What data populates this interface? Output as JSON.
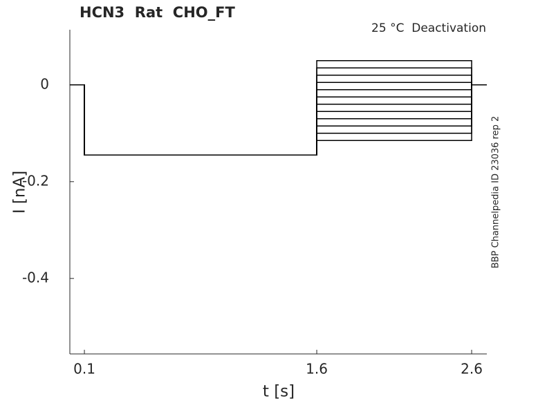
{
  "chart_data": {
    "type": "line",
    "title": "HCN3  Rat  CHO_FT",
    "annotation": "25 °C  Deactivation",
    "side_text": "BBP Channelpedia ID 23036 rep 2",
    "xlabel": "t [s]",
    "ylabel": "I [nA]",
    "x": [
      0.006,
      0.1,
      0.1,
      1.6,
      1.6,
      2.6,
      2.6,
      2.698
    ],
    "series": [
      {
        "color": "#000000",
        "values": [
          0,
          0,
          -0.145,
          -0.145,
          0.05,
          0.05,
          0,
          0
        ]
      },
      {
        "color": "#000000",
        "values": [
          0,
          0,
          -0.145,
          -0.145,
          0.035,
          0.035,
          0,
          0
        ]
      },
      {
        "color": "#000000",
        "values": [
          0,
          0,
          -0.145,
          -0.145,
          0.02,
          0.02,
          0,
          0
        ]
      },
      {
        "color": "#000000",
        "values": [
          0,
          0,
          -0.145,
          -0.145,
          0.005,
          0.005,
          0,
          0
        ]
      },
      {
        "color": "#000000",
        "values": [
          0,
          0,
          -0.145,
          -0.145,
          -0.01,
          -0.01,
          0,
          0
        ]
      },
      {
        "color": "#000000",
        "values": [
          0,
          0,
          -0.145,
          -0.145,
          -0.025,
          -0.025,
          0,
          0
        ]
      },
      {
        "color": "#000000",
        "values": [
          0,
          0,
          -0.145,
          -0.145,
          -0.04,
          -0.04,
          0,
          0
        ]
      },
      {
        "color": "#000000",
        "values": [
          0,
          0,
          -0.145,
          -0.145,
          -0.055,
          -0.055,
          0,
          0
        ]
      },
      {
        "color": "#000000",
        "values": [
          0,
          0,
          -0.145,
          -0.145,
          -0.07,
          -0.07,
          0,
          0
        ]
      },
      {
        "color": "#000000",
        "values": [
          0,
          0,
          -0.145,
          -0.145,
          -0.085,
          -0.085,
          0,
          0
        ]
      },
      {
        "color": "#000000",
        "values": [
          0,
          0,
          -0.145,
          -0.145,
          -0.1,
          -0.1,
          0,
          0
        ]
      },
      {
        "color": "#000000",
        "values": [
          0,
          0,
          -0.145,
          -0.145,
          -0.115,
          -0.115,
          0,
          0
        ]
      }
    ],
    "xlim": [
      0.006,
      2.698
    ],
    "xticks": [
      0.1,
      1.6,
      2.6
    ],
    "ylim": [
      -0.556,
      0.114
    ],
    "yticks": [
      0,
      -0.2,
      -0.4
    ],
    "grid": false
  }
}
